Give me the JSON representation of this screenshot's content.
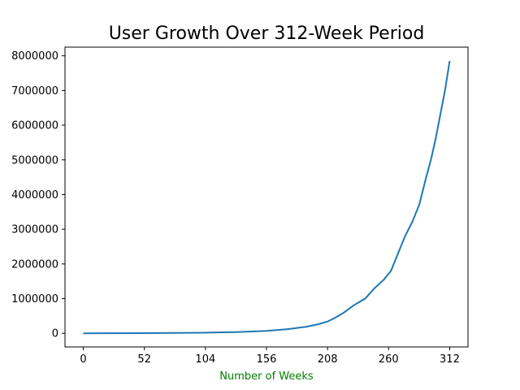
{
  "chart_data": {
    "type": "line",
    "title": "User Growth Over 312-Week Period",
    "xlabel": "Number of Weeks",
    "xlabel_color": "#008000",
    "ylabel": "",
    "line_color": "#1f77b4",
    "xlim": [
      -15.6,
      327.6
    ],
    "ylim": [
      -393000,
      8250000
    ],
    "x_ticks": [
      0,
      52,
      104,
      156,
      208,
      260,
      312
    ],
    "y_ticks": [
      0,
      1000000,
      2000000,
      3000000,
      4000000,
      5000000,
      6000000,
      7000000,
      8000000
    ],
    "grid": false,
    "series": [
      {
        "x": [
          0,
          26,
          52,
          78,
          104,
          130,
          156,
          174,
          190,
          200,
          208,
          214,
          222,
          230,
          240,
          248,
          256,
          262,
          268,
          274,
          280,
          286,
          292,
          296,
          300,
          304,
          308,
          312
        ],
        "y": [
          0,
          2000,
          4000,
          10000,
          18000,
          35000,
          70000,
          120000,
          190000,
          260000,
          340000,
          440000,
          600000,
          800000,
          1000000,
          1300000,
          1550000,
          1800000,
          2300000,
          2800000,
          3200000,
          3700000,
          4500000,
          5000000,
          5600000,
          6300000,
          7000000,
          7850000
        ]
      }
    ]
  }
}
